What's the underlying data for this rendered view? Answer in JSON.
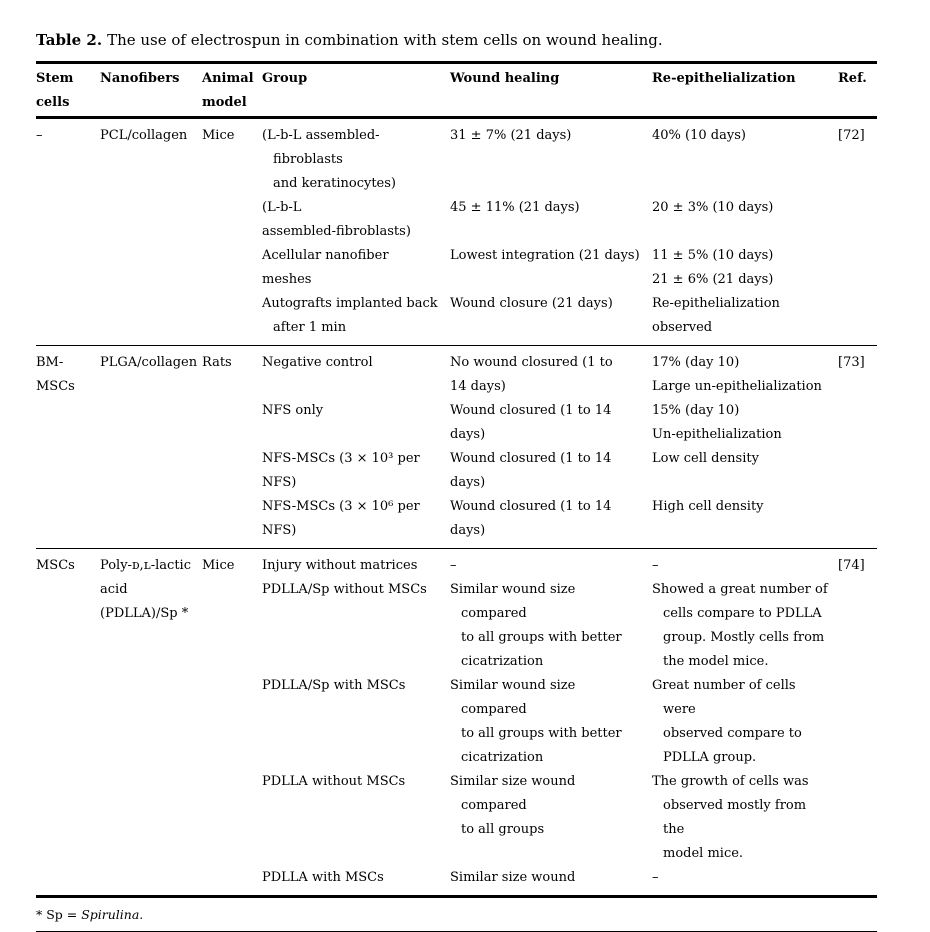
{
  "caption": {
    "label": "Table 2.",
    "text": "The use of electrospun in combination with stem cells on wound healing."
  },
  "header": {
    "stem_cells": "Stem\ncells",
    "nanofibers": "Nanofibers",
    "animal_model": "Animal\nmodel",
    "group": "Group",
    "wound_healing": "Wound healing",
    "re_epithelialization": "Re-epithelialization",
    "ref": "Ref."
  },
  "sections": [
    {
      "stem_cells": "–",
      "nanofibers": "PCL/collagen",
      "animal_model": "Mice",
      "ref": "[72]",
      "rows": [
        {
          "group": "(L-b-L assembled-fibroblasts\nand keratinocytes)",
          "wound_healing": "31 ± 7% (21 days)",
          "re_epithelialization": "40% (10 days)"
        },
        {
          "group": "(L-b-L\nassembled-fibroblasts)",
          "wound_healing": "45 ± 11% (21 days)",
          "re_epithelialization": "20 ± 3% (10 days)"
        },
        {
          "group": "Acellular nanofiber meshes",
          "wound_healing": "Lowest integration (21 days)",
          "re_epithelialization": "11 ± 5% (10 days)\n21 ± 6% (21 days)"
        },
        {
          "group": "Autografts implanted back\nafter 1 min",
          "wound_healing": "Wound closure (21 days)",
          "re_epithelialization": "Re-epithelialization\nobserved"
        }
      ]
    },
    {
      "stem_cells": "BM-MSCs",
      "nanofibers": "PLGA/collagen",
      "animal_model": "Rats",
      "ref": "[73]",
      "rows": [
        {
          "group": "Negative control",
          "wound_healing": "No wound closured (1 to\n14 days)",
          "re_epithelialization": "17% (day 10)\nLarge un-epithelialization"
        },
        {
          "group": "NFS only",
          "wound_healing": "Wound closured (1 to 14 days)",
          "re_epithelialization": "15% (day 10)\nUn-epithelialization"
        },
        {
          "group": "NFS-MSCs (3 × 10³ per NFS)",
          "wound_healing": "Wound closured (1 to 14 days)",
          "re_epithelialization": "Low cell density"
        },
        {
          "group": "NFS-MSCs (3 × 10⁶ per NFS)",
          "wound_healing": "Wound closured (1 to 14 days)",
          "re_epithelialization": "High cell density"
        }
      ]
    },
    {
      "stem_cells": "MSCs",
      "nanofibers": "Poly-ᴅ,ʟ-lactic\nacid\n(PDLLA)/Sp *",
      "animal_model": "Mice",
      "ref": "[74]",
      "rows": [
        {
          "group": "Injury without matrices",
          "wound_healing": "–",
          "re_epithelialization": "–"
        },
        {
          "group": "PDLLA/Sp without MSCs",
          "wound_healing": "Similar wound size compared\nto all groups with better\ncicatrization",
          "re_epithelialization": "Showed a great number of\ncells compare to PDLLA\ngroup. Mostly cells from\nthe model mice."
        },
        {
          "group": "PDLLA/Sp with MSCs",
          "wound_healing": "Similar wound size compared\nto all groups with better\ncicatrization",
          "re_epithelialization": "Great number of cells were\nobserved compare to\nPDLLA group."
        },
        {
          "group": "PDLLA without MSCs",
          "wound_healing": "Similar size wound compared\nto all groups",
          "re_epithelialization": "The growth of cells was\nobserved mostly from the\nmodel mice."
        },
        {
          "group": "PDLLA with MSCs",
          "wound_healing": "Similar size wound",
          "re_epithelialization": "–"
        }
      ]
    }
  ],
  "footnote": {
    "prefix": "* Sp = ",
    "species": "Spirulina."
  }
}
